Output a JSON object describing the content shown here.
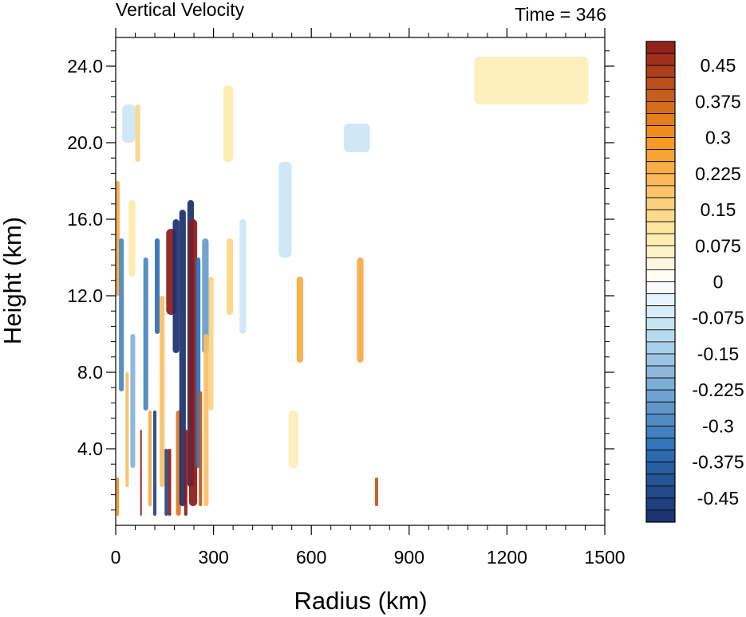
{
  "chart_data": {
    "type": "heatmap",
    "title": "Vertical Velocity",
    "subtitle": "Time = 346",
    "xlabel": "Radius (km)",
    "ylabel": "Height (km)",
    "xlim": [
      0,
      1500
    ],
    "ylim": [
      0,
      25.5
    ],
    "x_ticks": [
      "0",
      "300",
      "600",
      "900",
      "1200",
      "1500"
    ],
    "y_ticks": [
      "4.0",
      "8.0",
      "12.0",
      "16.0",
      "20.0",
      "24.0"
    ],
    "grid": false,
    "colorbar": {
      "labels": [
        "0.45",
        "0.375",
        "0.3",
        "0.225",
        "0.15",
        "0.075",
        "0",
        "-0.075",
        "-0.15",
        "-0.225",
        "-0.3",
        "-0.375",
        "-0.45"
      ],
      "levels_min": -0.5,
      "levels_max": 0.5,
      "levels_step": 0.025
    },
    "colors": {
      "strong_negative": "#1b2f6b",
      "negative": "#2c6fb5",
      "weak_negative": "#bfe0f1",
      "zero": "#ffffff",
      "weak_positive": "#fdeaa6",
      "positive": "#f7931e",
      "strong_positive": "#8b1a1a"
    },
    "features": [
      {
        "x": 0,
        "x2": 12,
        "y1": 12,
        "y2": 18,
        "w": 0.25
      },
      {
        "x": 2,
        "x2": 10,
        "y1": 0.5,
        "y2": 2.5,
        "w": 0.3
      },
      {
        "x": 10,
        "x2": 25,
        "y1": 7,
        "y2": 15,
        "w": -0.3
      },
      {
        "x": 30,
        "x2": 40,
        "y1": 2,
        "y2": 8,
        "w": 0.2
      },
      {
        "x": 45,
        "x2": 60,
        "y1": 3,
        "y2": 10,
        "w": -0.2
      },
      {
        "x": 60,
        "x2": 75,
        "y1": 19,
        "y2": 22,
        "w": 0.15
      },
      {
        "x": 75,
        "x2": 80,
        "y1": 0.5,
        "y2": 5,
        "w": 0.5
      },
      {
        "x": 85,
        "x2": 100,
        "y1": 6,
        "y2": 14,
        "w": -0.3
      },
      {
        "x": 100,
        "x2": 110,
        "y1": 1,
        "y2": 6,
        "w": 0.25
      },
      {
        "x": 115,
        "x2": 125,
        "y1": 0.5,
        "y2": 6,
        "w": -0.45
      },
      {
        "x": 120,
        "x2": 135,
        "y1": 10,
        "y2": 15,
        "w": -0.35
      },
      {
        "x": 135,
        "x2": 150,
        "y1": 2,
        "y2": 12,
        "w": 0.2
      },
      {
        "x": 150,
        "x2": 160,
        "y1": 0.5,
        "y2": 4,
        "w": -0.45
      },
      {
        "x": 160,
        "x2": 170,
        "y1": 0.5,
        "y2": 4,
        "w": 0.5
      },
      {
        "x": 155,
        "x2": 185,
        "y1": 11,
        "y2": 15.5,
        "w": 0.5
      },
      {
        "x": 175,
        "x2": 195,
        "y1": 9,
        "y2": 16,
        "w": -0.5
      },
      {
        "x": 185,
        "x2": 200,
        "y1": 0.5,
        "y2": 6,
        "w": 0.35
      },
      {
        "x": 195,
        "x2": 215,
        "y1": 1,
        "y2": 16.5,
        "w": -0.5
      },
      {
        "x": 210,
        "x2": 220,
        "y1": 0.5,
        "y2": 5,
        "w": 0.5
      },
      {
        "x": 220,
        "x2": 240,
        "y1": 2,
        "y2": 17,
        "w": -0.5
      },
      {
        "x": 225,
        "x2": 250,
        "y1": 1,
        "y2": 16,
        "w": 0.5
      },
      {
        "x": 245,
        "x2": 260,
        "y1": 3,
        "y2": 14,
        "w": -0.35
      },
      {
        "x": 255,
        "x2": 265,
        "y1": 1,
        "y2": 7,
        "w": 0.4
      },
      {
        "x": 265,
        "x2": 285,
        "y1": 9,
        "y2": 15,
        "w": -0.25
      },
      {
        "x": 270,
        "x2": 285,
        "y1": 1,
        "y2": 10,
        "w": 0.2
      },
      {
        "x": 285,
        "x2": 300,
        "y1": 6,
        "y2": 13,
        "w": 0.15
      },
      {
        "x": 340,
        "x2": 360,
        "y1": 11,
        "y2": 15,
        "w": 0.15
      },
      {
        "x": 380,
        "x2": 400,
        "y1": 10,
        "y2": 16,
        "w": -0.08
      },
      {
        "x": 555,
        "x2": 575,
        "y1": 8.5,
        "y2": 13,
        "w": 0.25
      },
      {
        "x": 740,
        "x2": 760,
        "y1": 8.5,
        "y2": 14,
        "w": 0.25
      },
      {
        "x": 795,
        "x2": 805,
        "y1": 1,
        "y2": 2.5,
        "w": 0.4
      },
      {
        "x": 700,
        "x2": 780,
        "y1": 19.5,
        "y2": 21,
        "w": -0.08
      },
      {
        "x": 20,
        "x2": 60,
        "y1": 20,
        "y2": 22,
        "w": -0.08
      },
      {
        "x": 40,
        "x2": 60,
        "y1": 13,
        "y2": 17,
        "w": 0.1
      },
      {
        "x": 330,
        "x2": 360,
        "y1": 19,
        "y2": 23,
        "w": 0.1
      },
      {
        "x": 500,
        "x2": 540,
        "y1": 14,
        "y2": 19,
        "w": -0.08
      },
      {
        "x": 530,
        "x2": 560,
        "y1": 3,
        "y2": 6,
        "w": 0.08
      },
      {
        "x": 1100,
        "x2": 1450,
        "y1": 22,
        "y2": 24.5,
        "w": 0.08
      }
    ]
  }
}
